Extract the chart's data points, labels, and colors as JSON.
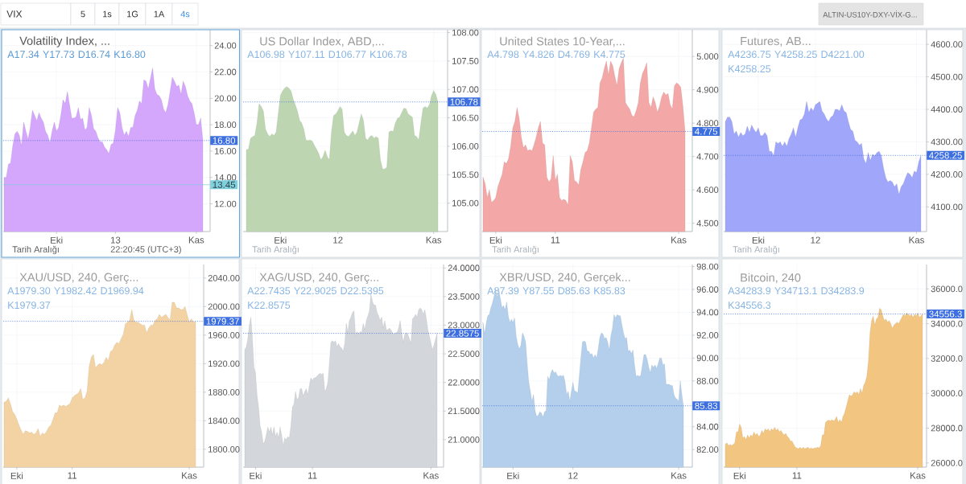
{
  "chart_data": [
    {
      "type": "other",
      "annotations": [
        "VIX",
        "5",
        "1s",
        "1G",
        "1A",
        "4s",
        "ALTIN-US10Y-DXY-VİX-G..."
      ]
    },
    {
      "type": "area",
      "title": "Volatility Index, ...",
      "subtitle": "A17.34 Y17.73 D16.74 K16.80",
      "color": "#d4a6fc",
      "categories": [
        null,
        null,
        null,
        null,
        null,
        null,
        null,
        null,
        null,
        null,
        null,
        null,
        null,
        null,
        null,
        null,
        null,
        null,
        null,
        null,
        null,
        null,
        null,
        null,
        "Eki",
        null,
        null,
        null,
        null,
        null,
        null,
        null,
        null,
        null,
        null,
        null,
        null,
        null,
        null,
        null,
        null,
        null,
        null,
        null,
        null,
        null,
        null,
        null,
        null,
        null,
        null,
        "13",
        null,
        null,
        null,
        null,
        null,
        null,
        null,
        null,
        null,
        null,
        null,
        null,
        null,
        null,
        null,
        null,
        null,
        null,
        null,
        null,
        null,
        null,
        null,
        null,
        null,
        null,
        null,
        null,
        null,
        null,
        null,
        null,
        null,
        null,
        null,
        null,
        "Kas",
        null,
        null,
        null
      ],
      "values": [
        14.0,
        14.0,
        15.0,
        15.1,
        16.4,
        17.3,
        17.5,
        17.2,
        16.4,
        18.2,
        17.5,
        16.9,
        17.8,
        19.1,
        18.7,
        18.3,
        18.9,
        18.5,
        18.2,
        17.5,
        17.2,
        16.6,
        17.5,
        18.2,
        17.5,
        17.8,
        18.7,
        19.9,
        19.6,
        20.5,
        19.5,
        18.5,
        18.5,
        18.6,
        19.3,
        18.4,
        18.5,
        17.6,
        17.8,
        19.3,
        18.7,
        17.7,
        17.5,
        17.0,
        16.7,
        16.7,
        16.3,
        16.1,
        15.8,
        16.5,
        16.6,
        17.6,
        19.3,
        18.9,
        17.8,
        17.2,
        17.5,
        17.1,
        17.8,
        17.8,
        18.7,
        19.1,
        19.8,
        19.6,
        21.4,
        21.3,
        20.7,
        21.5,
        22.3,
        20.7,
        20.3,
        20.2,
        19.9,
        19.2,
        18.9,
        19.5,
        20.5,
        21.6,
        21.3,
        20.9,
        21.0,
        20.3,
        21.3,
        20.9,
        20.2,
        19.8,
        19.6,
        18.9,
        18.0,
        18.0,
        18.5,
        16.8
      ],
      "ylim": [
        9.9,
        25.2
      ],
      "yticks": [
        {
          "value": 12,
          "label": "12.00"
        },
        {
          "value": 14,
          "label": "14.00"
        },
        {
          "value": 16,
          "label": "16.00"
        },
        {
          "value": 18,
          "label": "18.00"
        },
        {
          "value": 20,
          "label": "20.00"
        },
        {
          "value": 22,
          "label": "22.00"
        },
        {
          "value": 24,
          "label": "24.00"
        }
      ],
      "grid": true,
      "ref_lines": [
        {
          "axis": "y",
          "value": 16.8,
          "label": "16.80",
          "color": "#3d6fe0",
          "line_style": "dotted"
        },
        {
          "axis": "y",
          "value": 13.45,
          "label": "13.45",
          "color": "#7dd0dc",
          "line_style": "solid"
        }
      ],
      "annotations": [
        "Tarih Aralığı",
        "22:20:45 (UTC+3)"
      ]
    },
    {
      "type": "area",
      "title": "US Dollar Index, ABD,...",
      "subtitle": "A106.98 Y107.11 D106.77 K106.78",
      "color": "#bdd6b1",
      "categories": [
        null,
        null,
        null,
        null,
        null,
        null,
        null,
        null,
        null,
        null,
        null,
        null,
        null,
        null,
        null,
        null,
        "Eki",
        null,
        null,
        null,
        null,
        null,
        null,
        null,
        null,
        null,
        null,
        null,
        null,
        null,
        null,
        null,
        null,
        null,
        null,
        null,
        null,
        null,
        null,
        null,
        null,
        null,
        null,
        "12",
        null,
        null,
        null,
        null,
        null,
        null,
        null,
        null,
        null,
        null,
        null,
        null,
        null,
        null,
        null,
        null,
        null,
        null,
        null,
        null,
        null,
        null,
        null,
        null,
        null,
        null,
        null,
        null,
        null,
        null,
        null,
        null,
        null,
        null,
        null,
        null,
        null,
        null,
        null,
        null,
        null,
        null,
        null,
        null,
        "Kas",
        null,
        null
      ],
      "values": [
        105.94,
        105.95,
        106.14,
        106.17,
        106.19,
        106.41,
        106.75,
        106.7,
        106.62,
        106.3,
        106.22,
        106.17,
        106.22,
        106.19,
        106.25,
        106.57,
        106.89,
        106.97,
        107.02,
        107.05,
        107.02,
        106.97,
        106.83,
        106.73,
        106.62,
        106.46,
        106.41,
        106.3,
        106.11,
        106.1,
        106.11,
        106.09,
        106.01,
        105.95,
        105.87,
        105.76,
        105.82,
        105.93,
        105.82,
        105.76,
        106.25,
        106.54,
        106.57,
        106.62,
        106.7,
        106.65,
        106.25,
        106.19,
        106.17,
        106.22,
        106.27,
        106.19,
        106.25,
        106.41,
        106.57,
        106.46,
        106.14,
        106.11,
        106.17,
        106.19,
        106.14,
        106.17,
        106.14,
        105.76,
        105.6,
        105.6,
        105.63,
        106.25,
        106.27,
        106.26,
        106.41,
        106.49,
        106.51,
        106.59,
        106.67,
        106.66,
        106.57,
        106.54,
        106.51,
        106.19,
        106.17,
        106.11,
        106.41,
        106.67,
        106.7,
        106.67,
        106.73,
        106.89,
        106.98,
        106.91,
        106.78
      ],
      "ylim": [
        104.5,
        108.05
      ],
      "yticks": [
        {
          "value": 105,
          "label": "105.00"
        },
        {
          "value": 105.5,
          "label": "105.50"
        },
        {
          "value": 106,
          "label": "106.00"
        },
        {
          "value": 106.5,
          "label": "106.50"
        },
        {
          "value": 107,
          "label": "107.00"
        },
        {
          "value": 107.5,
          "label": "107.50"
        },
        {
          "value": 108,
          "label": "108.00"
        }
      ],
      "grid": true,
      "ref_lines": [
        {
          "axis": "y",
          "value": 106.78,
          "label": "106.78",
          "color": "#3d6fe0",
          "line_style": "dotted"
        }
      ],
      "annotations": [
        "Tarih Aralığı"
      ]
    },
    {
      "type": "area",
      "title": "United States 10-Year,...",
      "subtitle": "A4.798 Y4.826 D4.769 K4.775",
      "color": "#f3a7a7",
      "categories": [
        null,
        null,
        null,
        null,
        null,
        null,
        "Eki",
        null,
        null,
        null,
        null,
        null,
        null,
        null,
        null,
        null,
        null,
        null,
        null,
        null,
        null,
        null,
        null,
        null,
        null,
        null,
        null,
        null,
        null,
        null,
        null,
        null,
        null,
        null,
        "11",
        null,
        null,
        null,
        null,
        null,
        null,
        null,
        null,
        null,
        null,
        null,
        null,
        null,
        null,
        null,
        null,
        null,
        null,
        null,
        null,
        null,
        null,
        null,
        null,
        null,
        null,
        null,
        null,
        null,
        null,
        null,
        null,
        null,
        null,
        null,
        null,
        null,
        null,
        null,
        null,
        null,
        null,
        null,
        null,
        null,
        null,
        null,
        null,
        null,
        null,
        null,
        null,
        null,
        null,
        null,
        null,
        null,
        "Kas",
        null,
        null,
        null
      ],
      "values": [
        4.638,
        4.619,
        4.577,
        4.6,
        4.563,
        4.568,
        4.577,
        4.61,
        4.628,
        4.647,
        4.684,
        4.679,
        4.693,
        4.73,
        4.786,
        4.805,
        4.847,
        4.814,
        4.758,
        4.726,
        4.735,
        4.717,
        4.721,
        4.717,
        4.735,
        4.758,
        4.786,
        4.805,
        4.74,
        4.735,
        4.638,
        4.624,
        4.633,
        4.703,
        4.628,
        4.647,
        4.577,
        4.568,
        4.572,
        4.568,
        4.554,
        4.703,
        4.684,
        4.628,
        4.624,
        4.614,
        4.661,
        4.684,
        4.712,
        4.717,
        4.74,
        4.786,
        4.833,
        4.842,
        4.847,
        4.921,
        4.935,
        4.963,
        4.986,
        4.944,
        4.986,
        4.972,
        4.94,
        4.912,
        4.963,
        4.981,
        4.995,
        4.861,
        4.851,
        4.842,
        4.823,
        4.819,
        4.837,
        4.861,
        4.921,
        4.949,
        4.963,
        4.981,
        4.861,
        4.847,
        4.879,
        4.861,
        4.833,
        4.851,
        4.879,
        4.893,
        4.884,
        4.889,
        4.856,
        4.842,
        4.912,
        4.921,
        4.916,
        4.907,
        4.851,
        4.775
      ],
      "ylim": [
        4.475,
        5.08
      ],
      "yticks": [
        {
          "value": 4.5,
          "label": "4.500"
        },
        {
          "value": 4.6,
          "label": "4.600"
        },
        {
          "value": 4.7,
          "label": "4.700"
        },
        {
          "value": 4.8,
          "label": "4.800"
        },
        {
          "value": 4.9,
          "label": "4.900"
        },
        {
          "value": 5.0,
          "label": "5.000"
        }
      ],
      "grid": true,
      "ref_lines": [
        {
          "axis": "y",
          "value": 4.775,
          "label": "4.775",
          "color": "#3d6fe0",
          "line_style": "dotted"
        }
      ],
      "annotations": [
        "Tarih Aralığı"
      ]
    },
    {
      "type": "area",
      "title": "Futures, AB...",
      "subtitle": "A4236.75 Y4258.25 D4221.00 K4258.25",
      "color": "#a0a6fa",
      "categories": [
        null,
        null,
        null,
        null,
        null,
        null,
        null,
        null,
        null,
        null,
        null,
        null,
        null,
        null,
        null,
        "Eki",
        null,
        null,
        null,
        null,
        null,
        null,
        null,
        null,
        null,
        null,
        null,
        null,
        null,
        null,
        null,
        null,
        null,
        null,
        null,
        null,
        null,
        null,
        null,
        null,
        null,
        "12",
        null,
        null,
        null,
        null,
        null,
        null,
        null,
        null,
        null,
        null,
        null,
        null,
        null,
        null,
        null,
        null,
        null,
        null,
        null,
        null,
        null,
        null,
        null,
        null,
        null,
        null,
        null,
        null,
        null,
        null,
        null,
        null,
        null,
        null,
        null,
        null,
        null,
        null,
        null,
        null,
        null,
        null,
        null,
        null,
        null,
        "Kas",
        null,
        null
      ],
      "values": [
        4362,
        4376,
        4376,
        4362,
        4324,
        4333,
        4314,
        4329,
        4319,
        4324,
        4348,
        4329,
        4352,
        4338,
        4329,
        4343,
        4319,
        4319,
        4329,
        4319,
        4271,
        4271,
        4257,
        4300,
        4295,
        4300,
        4286,
        4300,
        4286,
        4310,
        4324,
        4343,
        4314,
        4343,
        4367,
        4371,
        4386,
        4424,
        4390,
        4405,
        4395,
        4414,
        4419,
        4424,
        4395,
        4386,
        4371,
        4362,
        4376,
        4381,
        4400,
        4400,
        4395,
        4414,
        4395,
        4390,
        4362,
        4338,
        4333,
        4305,
        4300,
        4290,
        4295,
        4248,
        4233,
        4267,
        4243,
        4262,
        4257,
        4267,
        4271,
        4257,
        4219,
        4190,
        4176,
        4181,
        4176,
        4162,
        4171,
        4138,
        4162,
        4171,
        4190,
        4205,
        4200,
        4190,
        4210,
        4205,
        4238,
        4258
      ],
      "ylim": [
        4024,
        4645
      ],
      "yticks": [
        {
          "value": 4100,
          "label": "4100.00"
        },
        {
          "value": 4200,
          "label": "4200.00"
        },
        {
          "value": 4300,
          "label": "4300.00"
        },
        {
          "value": 4400,
          "label": "4400.00"
        },
        {
          "value": 4500,
          "label": "4500.00"
        },
        {
          "value": 4600,
          "label": "4600.00"
        }
      ],
      "grid": true,
      "ref_lines": [
        {
          "axis": "y",
          "value": 4258.25,
          "label": "4258.25",
          "color": "#3d6fe0",
          "line_style": "dotted"
        }
      ],
      "annotations": [
        "Tarih Aralığı"
      ]
    },
    {
      "type": "area",
      "title": "XAU/USD, 240, Gerç...",
      "subtitle": "A1979.30 Y1982.42 D1969.94 K1979.37",
      "color": "#f3d3a3",
      "categories": [
        null,
        null,
        null,
        null,
        null,
        null,
        "Eki",
        null,
        null,
        null,
        null,
        null,
        null,
        null,
        null,
        null,
        null,
        null,
        null,
        null,
        null,
        null,
        null,
        null,
        null,
        null,
        null,
        null,
        null,
        null,
        null,
        null,
        "11",
        null,
        null,
        null,
        null,
        null,
        null,
        null,
        null,
        null,
        null,
        null,
        null,
        null,
        null,
        null,
        null,
        null,
        null,
        null,
        null,
        null,
        null,
        null,
        null,
        null,
        null,
        null,
        null,
        null,
        null,
        null,
        null,
        null,
        null,
        null,
        null,
        null,
        null,
        null,
        null,
        null,
        null,
        null,
        null,
        null,
        null,
        null,
        null,
        null,
        null,
        null,
        null,
        null,
        null,
        "Kas",
        null,
        null,
        null
      ],
      "values": [
        1866,
        1867,
        1872,
        1864,
        1853,
        1849,
        1842,
        1834,
        1827,
        1821,
        1826,
        1825,
        1823,
        1824,
        1821,
        1823,
        1829,
        1818,
        1823,
        1821,
        1825,
        1831,
        1834,
        1842,
        1851,
        1851,
        1862,
        1860,
        1862,
        1860,
        1862,
        1864,
        1872,
        1875,
        1877,
        1879,
        1885,
        1870,
        1872,
        1881,
        1916,
        1929,
        1933,
        1914,
        1918,
        1920,
        1918,
        1922,
        1929,
        1924,
        1937,
        1939,
        1946,
        1950,
        1948,
        1955,
        1961,
        1976,
        1978,
        1981,
        1996,
        1981,
        1978,
        1978,
        1976,
        1974,
        1974,
        1963,
        1970,
        1974,
        1974,
        1981,
        1983,
        1989,
        1985,
        1987,
        1989,
        1985,
        1981,
        2006,
        2006,
        1998,
        1998,
        1996,
        1996,
        2000,
        1989,
        1978,
        1983,
        1978,
        1979
      ],
      "ylim": [
        1775,
        2059
      ],
      "yticks": [
        {
          "value": 1800,
          "label": "1800.00"
        },
        {
          "value": 1840,
          "label": "1840.00"
        },
        {
          "value": 1880,
          "label": "1880.00"
        },
        {
          "value": 1920,
          "label": "1920.00"
        },
        {
          "value": 1960,
          "label": "1960.00"
        },
        {
          "value": 2000,
          "label": "2000.00"
        },
        {
          "value": 2040,
          "label": "2040.00"
        }
      ],
      "grid": true,
      "ref_lines": [
        {
          "axis": "y",
          "value": 1979.37,
          "label": "1979.37",
          "color": "#3d6fe0",
          "line_style": "dotted"
        }
      ]
    },
    {
      "type": "area",
      "title": "XAG/USD, 240, Gerç...",
      "subtitle": "A22.7435 Y22.9025 D22.5395 K22.8575",
      "color": "#d3d6da",
      "categories": [
        null,
        null,
        null,
        null,
        null,
        null,
        null,
        "Eki",
        null,
        null,
        null,
        null,
        null,
        null,
        null,
        null,
        null,
        null,
        null,
        null,
        null,
        null,
        null,
        null,
        null,
        null,
        null,
        null,
        null,
        null,
        null,
        null,
        null,
        null,
        null,
        null,
        null,
        null,
        null,
        null,
        null,
        null,
        null,
        null,
        "11",
        null,
        null,
        null,
        null,
        null,
        null,
        null,
        null,
        null,
        null,
        null,
        null,
        null,
        null,
        null,
        null,
        null,
        null,
        null,
        null,
        null,
        null,
        null,
        null,
        null,
        null,
        null,
        null,
        null,
        null,
        null,
        null,
        null,
        null,
        null,
        null,
        null,
        null,
        null,
        null,
        null,
        null,
        null,
        null,
        null,
        null,
        null,
        null,
        null,
        null,
        null,
        null,
        null,
        null,
        null,
        null,
        null,
        null,
        null,
        null,
        null,
        null,
        null,
        null,
        null,
        null,
        null,
        null,
        null,
        null,
        null,
        null,
        null,
        null,
        null,
        null,
        "Kas",
        null,
        null,
        null,
        null
      ],
      "values": [
        22.57,
        22.62,
        22.76,
        23.0,
        23.14,
        22.76,
        22.27,
        22.16,
        21.78,
        21.57,
        21.24,
        21.13,
        20.92,
        20.97,
        21.08,
        21.22,
        21.13,
        21.22,
        21.08,
        21.22,
        21.05,
        21.13,
        21.03,
        21.22,
        21.08,
        20.89,
        21.03,
        21.0,
        21.05,
        21.03,
        21.24,
        21.57,
        21.62,
        21.84,
        21.7,
        21.73,
        21.89,
        21.89,
        21.76,
        21.84,
        21.89,
        21.78,
        21.95,
        22.08,
        22.03,
        22.08,
        22.08,
        22.11,
        22.14,
        22.16,
        22.14,
        22.16,
        21.84,
        21.89,
        22.0,
        22.33,
        22.7,
        22.73,
        22.7,
        22.73,
        22.62,
        22.68,
        22.62,
        22.6,
        22.54,
        22.68,
        23.03,
        22.87,
        23.08,
        23.14,
        23.22,
        23.25,
        22.81,
        22.89,
        22.84,
        22.89,
        22.87,
        23.03,
        22.92,
        23.08,
        23.16,
        23.25,
        23.54,
        23.41,
        23.35,
        23.35,
        23.22,
        23.16,
        23.08,
        23.14,
        22.95,
        23.08,
        22.92,
        22.92,
        22.95,
        22.92,
        22.87,
        22.84,
        22.87,
        22.87,
        22.95,
        23.08,
        22.87,
        22.7,
        22.84,
        22.87,
        22.84,
        22.76,
        22.68,
        23.11,
        23.14,
        23.19,
        23.14,
        23.27,
        23.3,
        23.27,
        23.19,
        23.27,
        23.11,
        22.92,
        22.81,
        22.68,
        22.57,
        22.65,
        22.76,
        22.86
      ],
      "ylim": [
        20.52,
        24.06
      ],
      "yticks": [
        {
          "value": 21,
          "label": "21.0000"
        },
        {
          "value": 21.5,
          "label": "21.5000"
        },
        {
          "value": 22,
          "label": "22.0000"
        },
        {
          "value": 22.5,
          "label": "22.5000"
        },
        {
          "value": 23,
          "label": "23.0000"
        },
        {
          "value": 23.5,
          "label": "23.5000"
        },
        {
          "value": 24,
          "label": "24.0000"
        }
      ],
      "grid": true,
      "ref_lines": [
        {
          "axis": "y",
          "value": 22.8575,
          "label": "22.8575",
          "color": "#3d6fe0",
          "line_style": "dotted"
        }
      ]
    },
    {
      "type": "area",
      "title": "XBR/USD, 240, Gerçek...",
      "subtitle": "A87.39 Y87.55 D85.63 K85.83",
      "color": "#b3cfec",
      "categories": [
        null,
        null,
        null,
        null,
        null,
        null,
        null,
        null,
        null,
        null,
        null,
        null,
        null,
        null,
        null,
        null,
        null,
        null,
        null,
        "Eki",
        null,
        null,
        null,
        null,
        null,
        null,
        null,
        null,
        null,
        null,
        null,
        null,
        null,
        null,
        null,
        null,
        null,
        null,
        null,
        null,
        null,
        null,
        null,
        null,
        null,
        null,
        null,
        null,
        null,
        null,
        null,
        null,
        null,
        null,
        null,
        null,
        null,
        "12",
        null,
        null,
        null,
        null,
        null,
        null,
        null,
        null,
        null,
        null,
        null,
        null,
        null,
        null,
        null,
        null,
        null,
        null,
        null,
        null,
        null,
        null,
        null,
        null,
        null,
        null,
        null,
        null,
        null,
        null,
        null,
        null,
        null,
        null,
        null,
        null,
        null,
        null,
        null,
        null,
        null,
        null,
        null,
        null,
        null,
        null,
        null,
        null,
        null,
        null,
        null,
        null,
        null,
        null,
        null,
        null,
        null,
        null,
        null,
        null,
        null,
        null,
        null,
        null,
        null,
        null,
        "Kas",
        null,
        null,
        null
      ],
      "values": [
        93.1,
        92.1,
        93.0,
        93.7,
        93.8,
        94.4,
        94.8,
        95.4,
        96.0,
        95.3,
        96.0,
        95.2,
        94.4,
        94.6,
        94.2,
        94.9,
        93.7,
        93.1,
        93.4,
        93.1,
        93.5,
        91.9,
        91.2,
        90.8,
        91.1,
        92.2,
        91.9,
        91.4,
        89.5,
        87.9,
        87.1,
        86.2,
        86.8,
        85.4,
        84.9,
        85.0,
        85.3,
        85.2,
        84.8,
        85.3,
        85.4,
        88.4,
        88.1,
        88.7,
        89.0,
        88.7,
        88.8,
        88.5,
        88.4,
        88.5,
        88.4,
        88.5,
        87.9,
        86.8,
        87.1,
        86.2,
        87.1,
        87.9,
        87.1,
        87.1,
        86.9,
        88.4,
        90.0,
        91.4,
        91.5,
        91.4,
        90.6,
        90.6,
        90.3,
        90.4,
        90.0,
        90.3,
        90.0,
        90.8,
        91.8,
        92.2,
        92.1,
        91.7,
        91.8,
        91.4,
        90.7,
        91.9,
        92.6,
        93.8,
        93.5,
        93.8,
        93.7,
        93.7,
        92.9,
        92.2,
        91.7,
        91.8,
        90.6,
        90.7,
        90.4,
        90.7,
        89.4,
        88.4,
        88.5,
        88.4,
        88.5,
        89.4,
        90.3,
        90.3,
        89.9,
        89.2,
        88.7,
        89.4,
        89.2,
        89.4,
        89.1,
        89.5,
        90.0,
        90.0,
        89.4,
        89.5,
        87.7,
        87.7,
        87.7,
        87.6,
        87.6,
        86.8,
        86.5,
        86.4,
        86.2,
        88.0,
        86.8,
        85.8
      ],
      "ylim": [
        80.47,
        98.18
      ],
      "yticks": [
        {
          "value": 82,
          "label": "82.00"
        },
        {
          "value": 84,
          "label": "84.00"
        },
        {
          "value": 86,
          "label": null
        },
        {
          "value": 88,
          "label": "88.00"
        },
        {
          "value": 90,
          "label": "90.00"
        },
        {
          "value": 92,
          "label": "92.00"
        },
        {
          "value": 94,
          "label": "94.00"
        },
        {
          "value": 96,
          "label": "96.00"
        },
        {
          "value": 98,
          "label": "98.00"
        }
      ],
      "grid": true,
      "ref_lines": [
        {
          "axis": "y",
          "value": 85.83,
          "label": "85.83",
          "color": "#3d6fe0",
          "line_style": "dotted"
        }
      ]
    },
    {
      "type": "area",
      "title": "Bitcoin, 240",
      "subtitle": "A34283.9 Y34713.1 D34283.9 K34556.3",
      "color": "#f2c580",
      "categories": [
        null,
        null,
        null,
        null,
        null,
        null,
        null,
        null,
        null,
        "Eki",
        null,
        null,
        null,
        null,
        null,
        null,
        null,
        null,
        null,
        null,
        null,
        null,
        null,
        null,
        null,
        null,
        null,
        null,
        null,
        null,
        null,
        null,
        null,
        null,
        null,
        null,
        null,
        null,
        null,
        null,
        null,
        null,
        null,
        null,
        null,
        "11",
        null,
        null,
        null,
        null,
        null,
        null,
        null,
        null,
        null,
        null,
        null,
        null,
        null,
        null,
        null,
        null,
        null,
        null,
        null,
        null,
        null,
        null,
        null,
        null,
        null,
        null,
        null,
        null,
        null,
        null,
        null,
        null,
        null,
        null,
        null,
        null,
        null,
        null,
        null,
        null,
        null,
        null,
        null,
        null,
        null,
        null,
        null,
        null,
        null,
        null,
        null,
        null,
        null,
        null,
        null,
        null,
        null,
        null,
        null,
        null,
        null,
        null,
        null,
        null,
        null,
        null,
        null,
        null,
        null,
        null,
        null,
        null,
        null,
        null,
        null,
        "Kas",
        null,
        null,
        null
      ],
      "values": [
        27070,
        27160,
        26990,
        27070,
        26990,
        27070,
        27160,
        27780,
        27780,
        28230,
        28050,
        27430,
        27520,
        27340,
        27610,
        27430,
        27610,
        27520,
        27780,
        27610,
        27700,
        27520,
        27610,
        27870,
        27700,
        27960,
        27870,
        27960,
        27780,
        27960,
        27870,
        28050,
        27870,
        27960,
        27780,
        27870,
        27700,
        27610,
        27700,
        27520,
        27430,
        27250,
        27250,
        27070,
        26900,
        26860,
        26810,
        26900,
        26810,
        26900,
        26810,
        26860,
        26900,
        26810,
        26860,
        26810,
        26860,
        26860,
        26900,
        26860,
        26990,
        27610,
        27610,
        28320,
        28410,
        28460,
        28410,
        28490,
        28410,
        28490,
        28670,
        28320,
        28490,
        28320,
        28670,
        28850,
        29210,
        29560,
        29920,
        29830,
        29920,
        30090,
        30000,
        30090,
        29920,
        30270,
        30000,
        30450,
        30630,
        30980,
        31870,
        33470,
        34180,
        34440,
        33910,
        34270,
        34360,
        34890,
        34800,
        34440,
        34180,
        34270,
        34090,
        34180,
        34000,
        33730,
        33910,
        34000,
        34090,
        34000,
        34180,
        34360,
        34530,
        34440,
        34620,
        34530,
        34440,
        34530,
        34360,
        34530,
        34440,
        34620,
        34360,
        34440,
        34560
      ],
      "ylim": [
        25760,
        37400
      ],
      "yticks": [
        {
          "value": 26000,
          "label": "26000.0"
        },
        {
          "value": 28000,
          "label": "28000.0"
        },
        {
          "value": 30000,
          "label": "30000.0"
        },
        {
          "value": 32000,
          "label": "32000.0"
        },
        {
          "value": 34000,
          "label": "34000.0"
        },
        {
          "value": 36000,
          "label": "36000.0"
        }
      ],
      "grid": true,
      "ref_lines": [
        {
          "axis": "y",
          "value": 34556.3,
          "label": "34556.3",
          "color": "#3d6fe0",
          "line_style": "dotted"
        }
      ]
    }
  ]
}
